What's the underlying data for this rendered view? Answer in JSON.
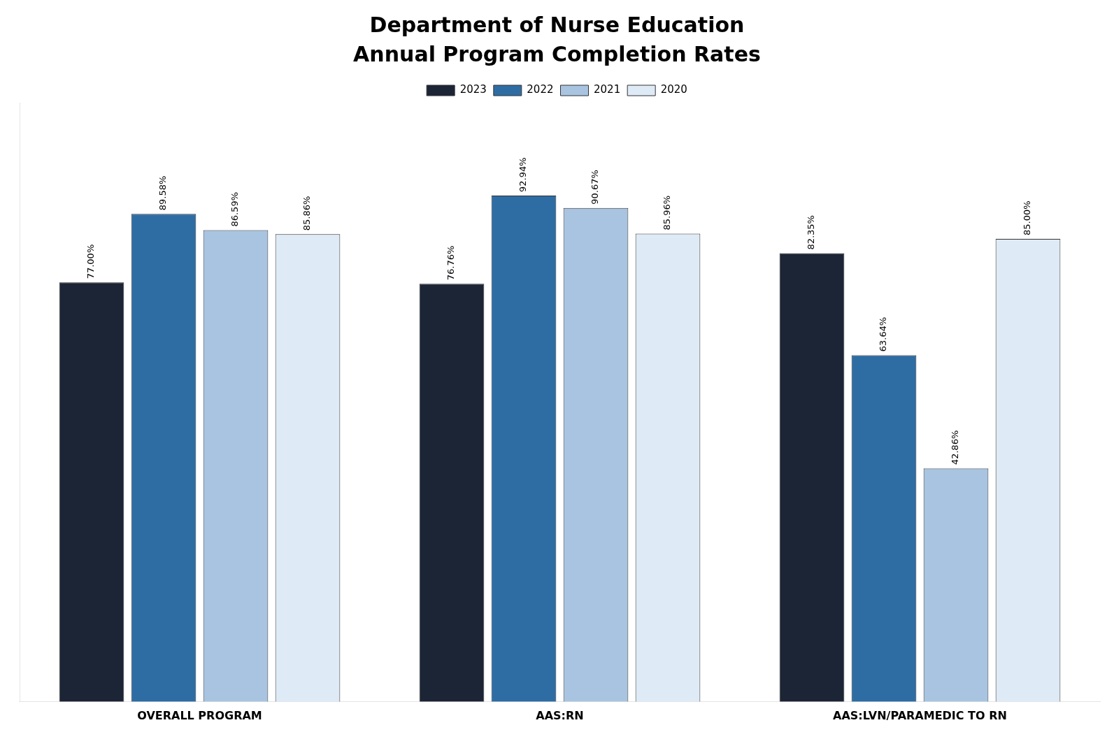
{
  "chart_data": {
    "type": "bar",
    "title": "Department of Nurse Education",
    "subtitle": "Annual Program Completion Rates",
    "categories": [
      "OVERALL PROGRAM",
      "AAS:RN",
      "AAS:LVN/PARAMEDIC TO RN"
    ],
    "series": [
      {
        "name": "2023",
        "color": "#1c2535",
        "values": [
          77.0,
          76.76,
          82.35
        ],
        "value_labels": [
          "77.00%",
          "76.76%",
          "82.35%"
        ]
      },
      {
        "name": "2022",
        "color": "#2e6da4",
        "values": [
          89.58,
          92.94,
          63.64
        ],
        "value_labels": [
          "89.58%",
          "92.94%",
          "63.64%"
        ]
      },
      {
        "name": "2021",
        "color": "#a8c4e0",
        "values": [
          86.59,
          90.67,
          42.86
        ],
        "value_labels": [
          "86.59%",
          "90.67%",
          "42.86%"
        ]
      },
      {
        "name": "2020",
        "color": "#deeaf5",
        "values": [
          85.86,
          85.96,
          85.0
        ],
        "value_labels": [
          "85.86%",
          "85.96%",
          "85.00%"
        ]
      }
    ],
    "ylim": [
      0,
      110
    ],
    "grid": false,
    "legend": "top",
    "data_labels": true,
    "tick_labels": "x"
  }
}
